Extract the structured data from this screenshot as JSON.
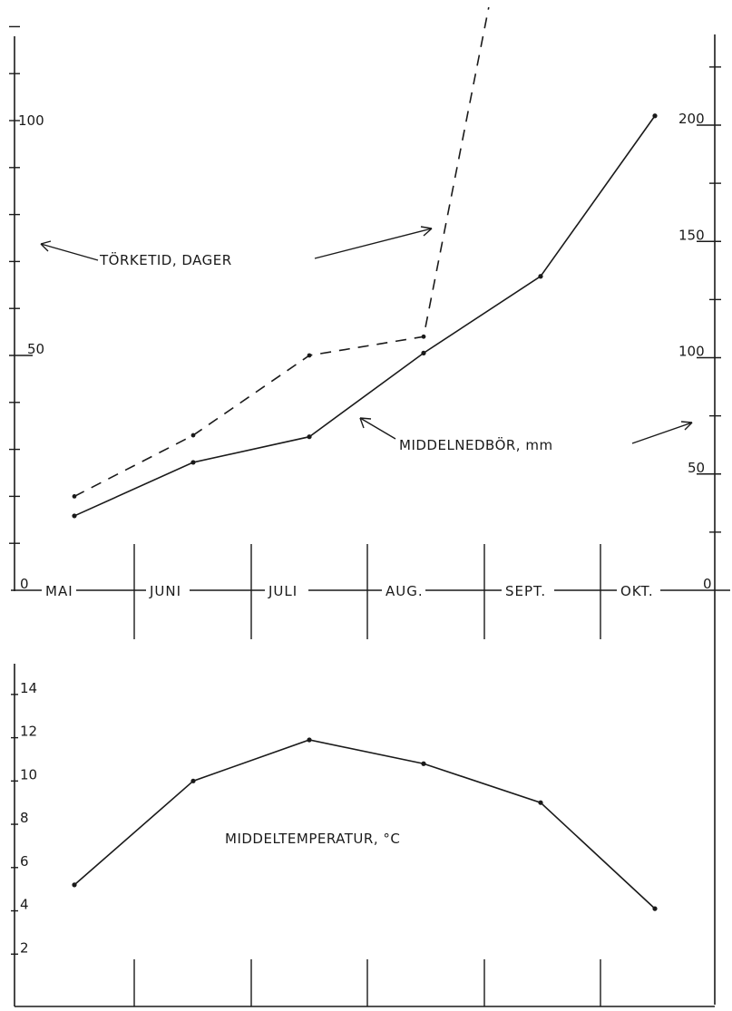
{
  "chart_data": [
    {
      "type": "line",
      "months": [
        "MAI",
        "JUNI",
        "JULI",
        "AUG.",
        "SEPT.",
        "OKT."
      ],
      "left_axis": {
        "ylim": [
          0,
          120
        ],
        "tick_labels": [
          "0",
          "50",
          "100"
        ]
      },
      "right_axis": {
        "ylim": [
          0,
          240
        ],
        "tick_labels": [
          "0",
          "50",
          "100",
          "150",
          "200"
        ]
      },
      "series": [
        {
          "name": "TÖRKETID, DAGER",
          "axis": "left",
          "style": "dashed",
          "values": [
            20,
            33,
            50,
            54,
            180,
            null
          ]
        },
        {
          "name": "MIDDELNEDBÖR, mm",
          "axis": "right",
          "style": "solid",
          "values": [
            32,
            55,
            66,
            102,
            135,
            204
          ]
        }
      ],
      "labels": {
        "torketid": "TÖRKETID, DAGER",
        "nedbor": "MIDDELNEDBÖR, mm"
      }
    },
    {
      "type": "line",
      "ylim": [
        0,
        15
      ],
      "tick_labels": [
        "2",
        "4",
        "6",
        "8",
        "10",
        "12",
        "14"
      ],
      "series": [
        {
          "name": "MIDDELTEMPERATUR, °C",
          "style": "solid",
          "values": [
            5.2,
            10,
            11.9,
            10.8,
            9,
            4.1
          ]
        }
      ],
      "label": "MIDDELTEMPERATUR, °C"
    }
  ]
}
